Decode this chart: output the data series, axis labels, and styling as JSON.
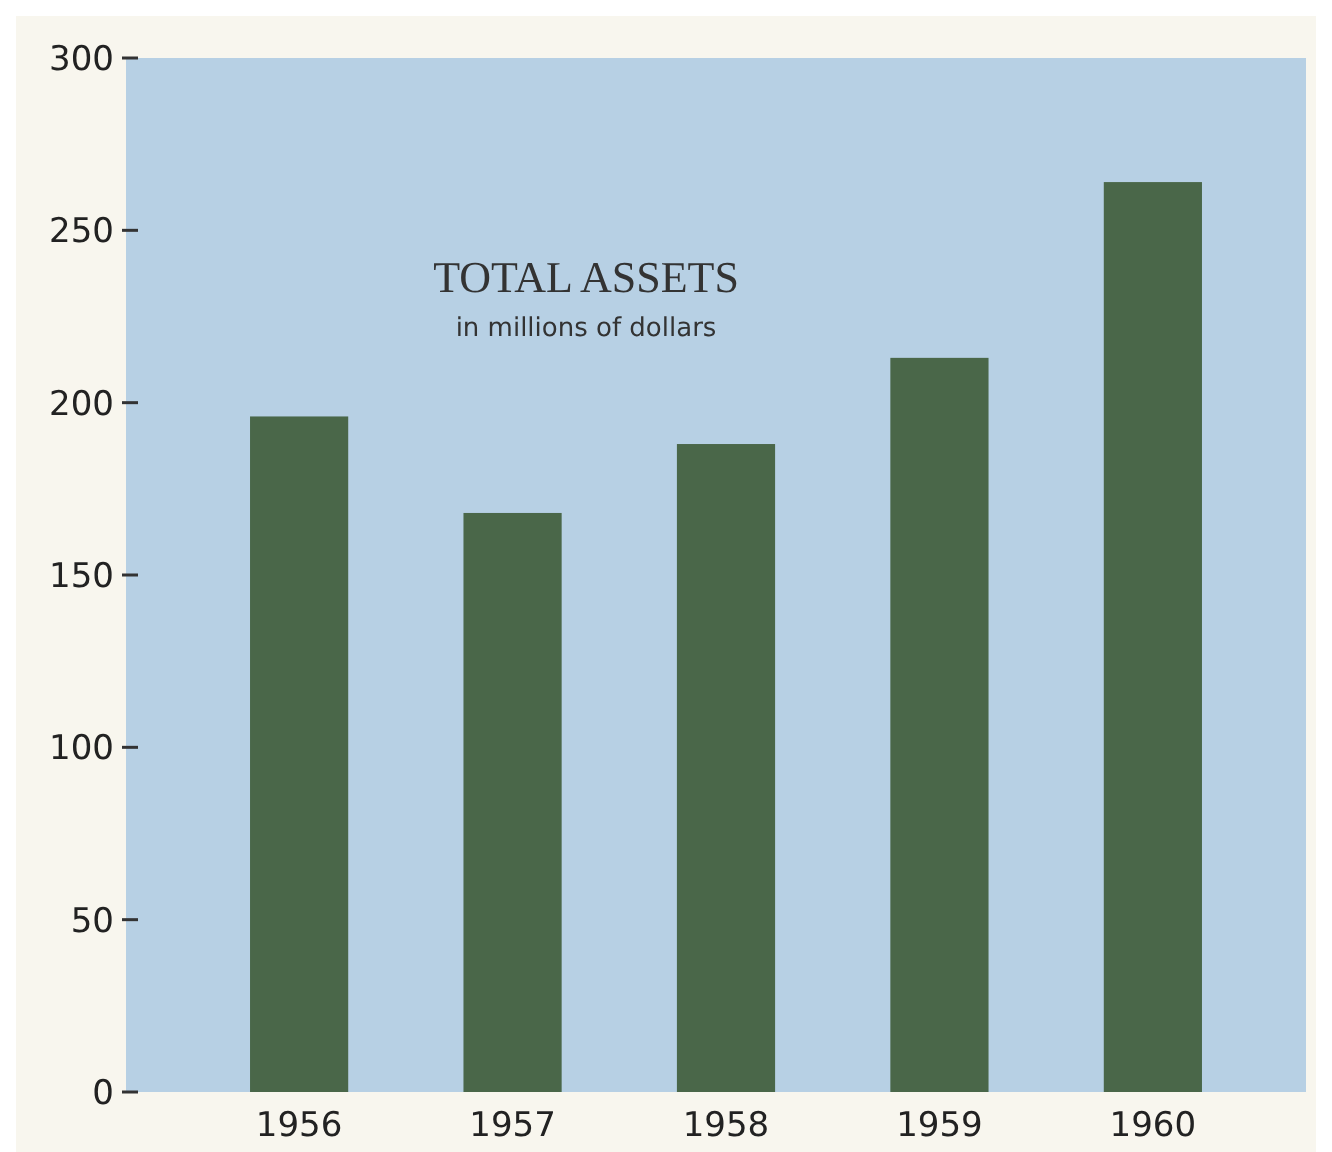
{
  "chart_data": {
    "type": "bar",
    "title": "TOTAL ASSETS",
    "subtitle": "in millions of dollars",
    "categories": [
      "1956",
      "1957",
      "1958",
      "1959",
      "1960"
    ],
    "values": [
      196,
      168,
      188,
      213,
      264
    ],
    "color": "#4a6749",
    "ylim": [
      0,
      300
    ],
    "yticks": [
      0,
      50,
      100,
      150,
      200,
      250,
      300
    ]
  }
}
